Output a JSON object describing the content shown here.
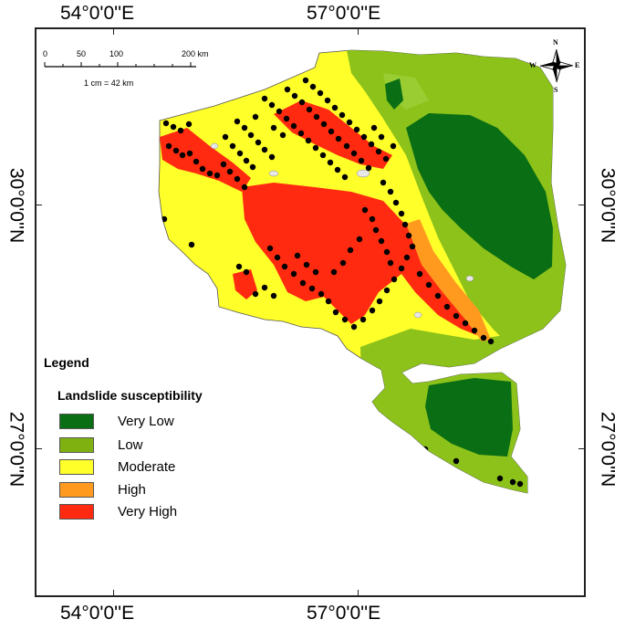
{
  "coordinates": {
    "top_left": "54°0'0''E",
    "top_right": "57°0'0''E",
    "bottom_left": "54°0'0''E",
    "bottom_right": "57°0'0''E",
    "left_upper": "30°0'0''N",
    "left_lower": "27°0'0''N",
    "right_upper": "30°0'0''N",
    "right_lower": "27°0'0''N"
  },
  "scale_bar": {
    "labels": [
      "0",
      "50",
      "100",
      "200 km"
    ],
    "note": "1 cm = 42 km"
  },
  "compass": {
    "n": "N",
    "s": "S",
    "e": "E",
    "w": "W"
  },
  "legend": {
    "title": "Legend",
    "subtitle": "Landslide susceptibility",
    "classes": [
      {
        "label": "Very Low",
        "color": "#0a6e14"
      },
      {
        "label": "Low",
        "color": "#7fb210"
      },
      {
        "label": "Moderate",
        "color": "#ffff2a"
      },
      {
        "label": "High",
        "color": "#ff9a1f"
      },
      {
        "label": "Very High",
        "color": "#ff2a10"
      }
    ]
  },
  "landslide_points_color": "#000000"
}
